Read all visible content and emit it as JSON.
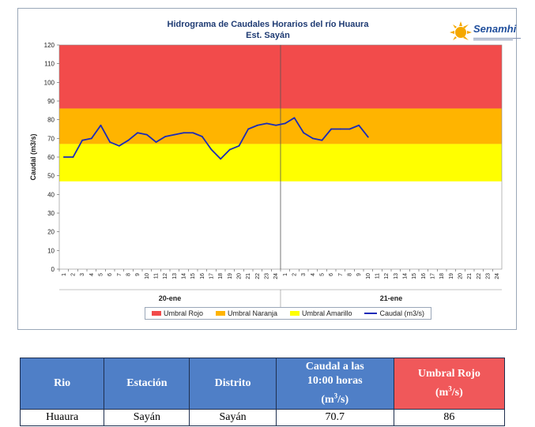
{
  "chart_data": {
    "type": "line",
    "title": "Hidrograma de Caudales Horarios del río Huaura",
    "subtitle": "Est. Sayán",
    "ylabel": "Caudal (m3/s)",
    "xlabel": "",
    "ylim": [
      0,
      120
    ],
    "yticks": [
      0,
      10,
      20,
      30,
      40,
      50,
      60,
      70,
      80,
      90,
      100,
      110,
      120
    ],
    "x_tick_labels": [
      "1",
      "2",
      "3",
      "4",
      "5",
      "6",
      "7",
      "8",
      "9",
      "10",
      "11",
      "12",
      "13",
      "14",
      "15",
      "16",
      "17",
      "18",
      "19",
      "20",
      "21",
      "22",
      "23",
      "24",
      "1",
      "2",
      "3",
      "4",
      "5",
      "6",
      "7",
      "8",
      "9",
      "10",
      "11",
      "12",
      "13",
      "14",
      "15",
      "16",
      "17",
      "18",
      "19",
      "20",
      "21",
      "22",
      "23",
      "24"
    ],
    "day_labels": [
      "20-ene",
      "21-ene"
    ],
    "bands": [
      {
        "name": "Umbral Rojo",
        "from": 86,
        "to": 120,
        "color": "#f24b4b"
      },
      {
        "name": "Umbral Naranja",
        "from": 67,
        "to": 86,
        "color": "#ffb400"
      },
      {
        "name": "Umbral Amarillo",
        "from": 47,
        "to": 67,
        "color": "#ffff00"
      }
    ],
    "series": [
      {
        "name": "Caudal (m3/s)",
        "color": "#1a2bb8",
        "x": [
          0,
          1,
          2,
          3,
          4,
          5,
          6,
          7,
          8,
          9,
          10,
          11,
          12,
          13,
          14,
          15,
          16,
          17,
          18,
          19,
          20,
          21,
          22,
          23,
          24,
          25,
          26,
          27,
          28,
          29,
          30,
          31,
          32,
          33
        ],
        "y": [
          60,
          60,
          69,
          70,
          77,
          68,
          66,
          69,
          73,
          72,
          68,
          71,
          72,
          73,
          73,
          71,
          64,
          59,
          64,
          66,
          75,
          77,
          78,
          77,
          78,
          81,
          73,
          70,
          69,
          75,
          75,
          75,
          77,
          70.7
        ]
      }
    ]
  },
  "legend": {
    "rojo": "Umbral Rojo",
    "naranja": "Umbral Naranja",
    "amarillo": "Umbral Amarillo",
    "caudal": "Caudal (m3/s)"
  },
  "logo": {
    "name": "Senamhi"
  },
  "table": {
    "headers": {
      "rio": "Rio",
      "estacion": "Estación",
      "distrito": "Distrito",
      "caudal_line1": "Caudal a las",
      "caudal_line2": "10:00 horas",
      "caudal_unit_base": "(m",
      "caudal_unit_sup": "3",
      "caudal_unit_end": "/s)",
      "umbral_line1": "Umbral Rojo",
      "umbral_unit_base": "(m",
      "umbral_unit_sup": "3",
      "umbral_unit_end": "/s)"
    },
    "row": {
      "rio": "Huaura",
      "estacion": "Sayán",
      "distrito": "Sayán",
      "caudal": "70.7",
      "umbral": "86"
    }
  }
}
